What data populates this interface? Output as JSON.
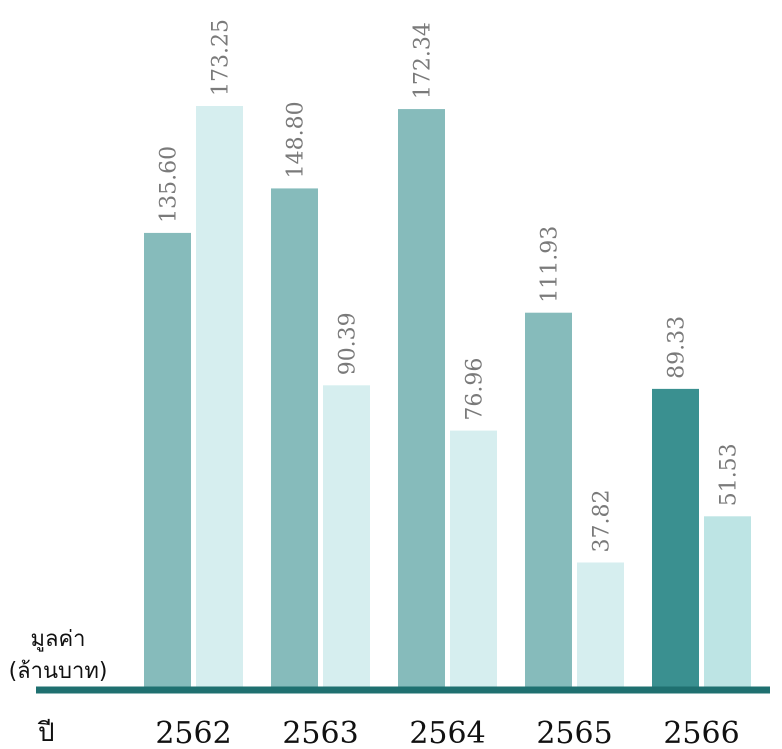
{
  "chart_data": {
    "type": "bar",
    "categories": [
      "2562",
      "2563",
      "2564",
      "2565",
      "2566"
    ],
    "series": [
      {
        "values": [
          135.6,
          148.8,
          172.34,
          111.93,
          89.33
        ]
      },
      {
        "values": [
          173.25,
          90.39,
          76.96,
          37.82,
          51.53
        ]
      }
    ],
    "value_labels": [
      [
        "135.60",
        "148.80",
        "172.34",
        "111.93",
        "89.33"
      ],
      [
        "173.25",
        "90.39",
        "76.96",
        "37.82",
        "51.53"
      ]
    ],
    "ylabel_line1": "มูลค่า",
    "ylabel_line2": "(ล้านบาท)",
    "xlabel": "ปี",
    "ylim": [
      0,
      173.25
    ],
    "grid": false,
    "colors": {
      "series1": "#86bbbb",
      "series2": "#d6eeef",
      "series1_highlight": "#3a9090",
      "series2_highlight": "#bde4e4",
      "axis": "#1f7070",
      "highlight_category_text": "#1f7a7a"
    },
    "highlight_category": "2566"
  }
}
